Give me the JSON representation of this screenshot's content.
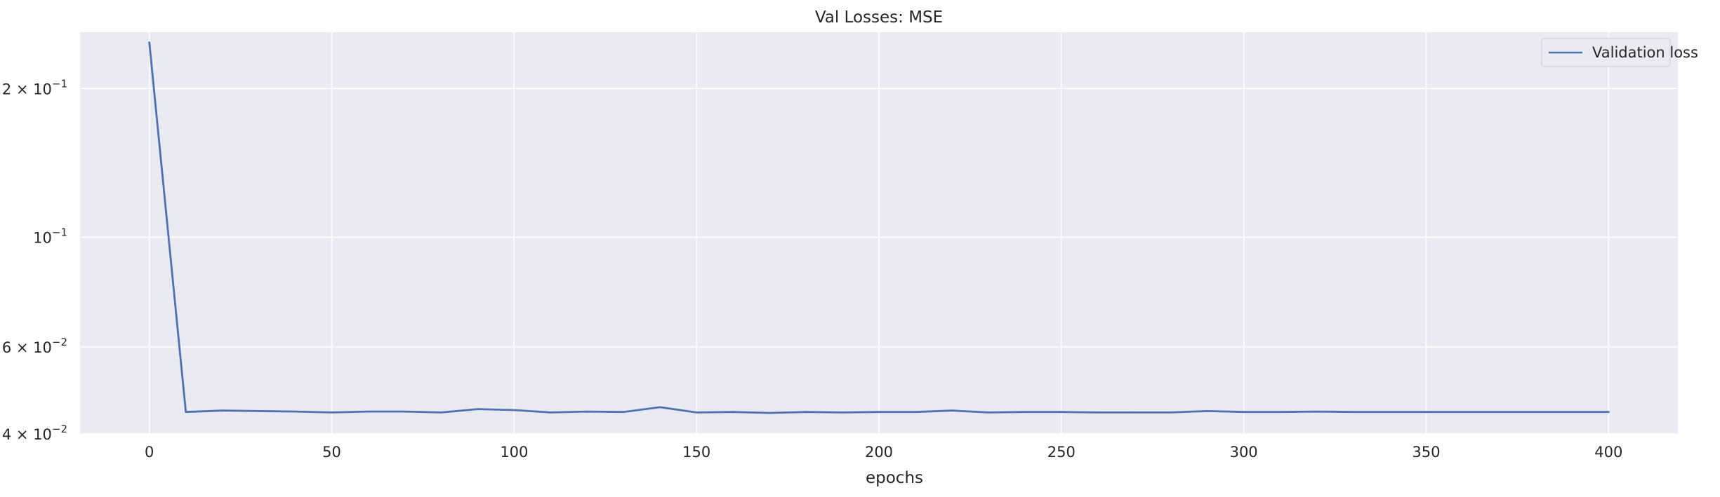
{
  "chart_data": {
    "type": "line",
    "title": "Val Losses:  MSE",
    "xlabel": "epochs",
    "ylabel": "",
    "yscale": "log",
    "xlim": [
      -19,
      419
    ],
    "ylim": [
      0.04,
      0.26
    ],
    "grid": true,
    "legend_position": "top-right",
    "x_ticks": [
      0,
      50,
      100,
      150,
      200,
      250,
      300,
      350,
      400
    ],
    "y_ticks": [
      {
        "value": 0.2,
        "mantissa": "2",
        "exponent": "−1"
      },
      {
        "value": 0.1,
        "mantissa": "",
        "exponent": "−1"
      },
      {
        "value": 0.06,
        "mantissa": "6",
        "exponent": "−2"
      },
      {
        "value": 0.04,
        "mantissa": "4",
        "exponent": "−2"
      }
    ],
    "x": [
      0,
      10,
      20,
      30,
      40,
      50,
      60,
      70,
      80,
      90,
      100,
      110,
      120,
      130,
      140,
      150,
      160,
      170,
      180,
      190,
      200,
      210,
      220,
      230,
      240,
      250,
      260,
      270,
      280,
      290,
      300,
      310,
      320,
      330,
      340,
      350,
      360,
      370,
      380,
      390,
      400
    ],
    "series": [
      {
        "name": "Validation loss",
        "color": "#4c72b0",
        "values": [
          0.248,
          0.0443,
          0.0446,
          0.0445,
          0.0444,
          0.0442,
          0.0444,
          0.0444,
          0.0442,
          0.0449,
          0.0447,
          0.0442,
          0.0444,
          0.0443,
          0.0453,
          0.0442,
          0.0443,
          0.0441,
          0.0443,
          0.0442,
          0.0443,
          0.0443,
          0.0446,
          0.0442,
          0.0443,
          0.0443,
          0.0442,
          0.0442,
          0.0442,
          0.0445,
          0.0443,
          0.0443,
          0.0444,
          0.0443,
          0.0443,
          0.0443,
          0.0443,
          0.0443,
          0.0443,
          0.0443,
          0.0443
        ]
      }
    ],
    "colors": {
      "plot_background": "#eaeaf2",
      "grid": "#ffffff",
      "text": "#262626"
    }
  }
}
